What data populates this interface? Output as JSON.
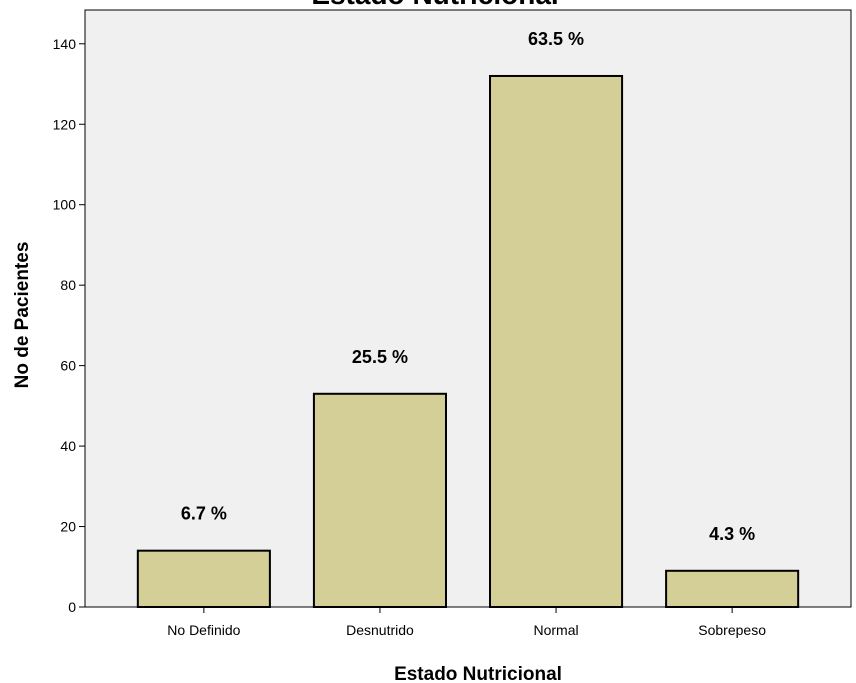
{
  "chart_data": {
    "type": "bar",
    "title": "Estado Nutricional",
    "xlabel": "Estado Nutricional",
    "ylabel": "No de Pacientes",
    "categories": [
      "No Definido",
      "Desnutrido",
      "Normal",
      "Sobrepeso"
    ],
    "values": [
      14,
      53,
      132,
      9
    ],
    "data_labels": [
      "6.7 %",
      "25.5 %",
      "63.5 %",
      "4.3 %"
    ],
    "yticks": [
      0,
      20,
      40,
      60,
      80,
      100,
      120,
      140
    ],
    "ylim": [
      0,
      148.4
    ],
    "grid": false,
    "legend": false,
    "colors": {
      "bar_fill": "#d4cf97",
      "bar_stroke": "#000000",
      "plot_background": "#f0f0f0"
    }
  }
}
